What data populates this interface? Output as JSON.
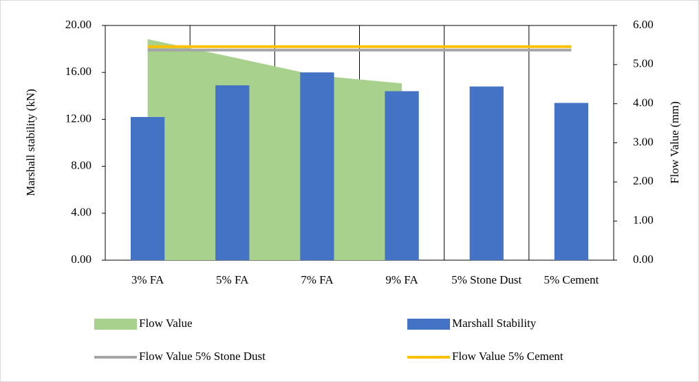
{
  "chart_data": {
    "type": "combo",
    "categories": [
      "3% FA",
      "5% FA",
      "7% FA",
      "9% FA",
      "5% Stone Dust",
      "5% Cement"
    ],
    "series": [
      {
        "name": "Flow Value",
        "type": "area",
        "axis": "y2",
        "color": "#a9d18e",
        "values": [
          5.65,
          5.19,
          4.72,
          4.52,
          null,
          null
        ]
      },
      {
        "name": "Marshall Stability",
        "type": "bar",
        "color": "#4472c4",
        "values": [
          12.2,
          14.9,
          16.0,
          14.4,
          14.8,
          13.4
        ]
      },
      {
        "name": "Flow Value 5% Stone Dust",
        "type": "line",
        "axis": "y2",
        "color": "#a5a5a5",
        "values": [
          5.37,
          5.37,
          5.37,
          5.37,
          5.37,
          5.37
        ]
      },
      {
        "name": "Flow Value 5% Cement",
        "type": "line",
        "axis": "y2",
        "color": "#ffc000",
        "values": [
          5.46,
          5.46,
          5.46,
          5.46,
          5.46,
          5.46
        ]
      }
    ],
    "ylabel": "Marshall stability (kN)",
    "y2label": "Flow Value (mm)",
    "ylim": [
      0,
      20
    ],
    "yticks": [
      {
        "value": 0,
        "label": "0.00"
      },
      {
        "value": 4,
        "label": "4.00"
      },
      {
        "value": 8,
        "label": "8.00"
      },
      {
        "value": 12,
        "label": "12.00"
      },
      {
        "value": 16,
        "label": "16.00"
      },
      {
        "value": 20,
        "label": "20.00"
      }
    ],
    "y2lim": [
      0,
      6
    ],
    "y2ticks": [
      {
        "value": 0,
        "label": "0.00"
      },
      {
        "value": 1,
        "label": "1.00"
      },
      {
        "value": 2,
        "label": "2.00"
      },
      {
        "value": 3,
        "label": "3.00"
      },
      {
        "value": 4,
        "label": "4.00"
      },
      {
        "value": 5,
        "label": "5.00"
      },
      {
        "value": 6,
        "label": "6.00"
      }
    ],
    "xgrid": true,
    "legend": "bottom"
  }
}
